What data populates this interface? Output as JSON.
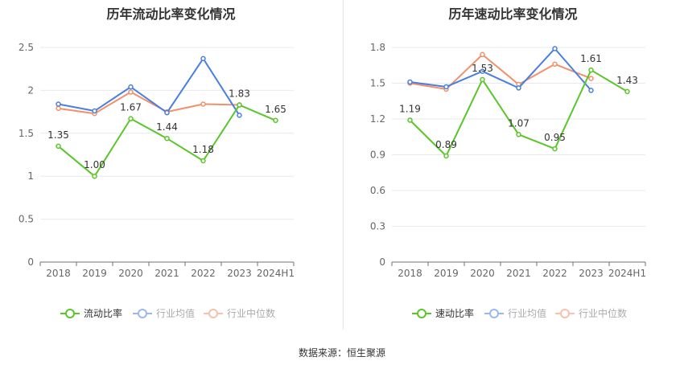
{
  "source": "数据来源：恒生聚源",
  "colors": {
    "company": "#5ac62a",
    "avg": "#4a7fdf",
    "median": "#f2906a",
    "grid": "#e8e8ee",
    "axis": "#666666",
    "label": "#333333"
  },
  "chart_data": [
    {
      "type": "line",
      "title": "历年流动比率变化情况",
      "categories": [
        "2018",
        "2019",
        "2020",
        "2021",
        "2022",
        "2023",
        "2024H1"
      ],
      "ylim": [
        0,
        2.5
      ],
      "yticks": [
        "0",
        "0.5",
        "1",
        "1.5",
        "2",
        "2.5"
      ],
      "grid": true,
      "legend_position": "bottom",
      "series": [
        {
          "name": "流动比率",
          "role": "company",
          "values": [
            1.35,
            1.0,
            1.67,
            1.44,
            1.18,
            1.83,
            1.65
          ],
          "labels": [
            "1.35",
            "1.00",
            "1.67",
            "1.44",
            "1.18",
            "1.83",
            "1.65"
          ]
        },
        {
          "name": "行业均值",
          "role": "avg",
          "values": [
            1.84,
            1.76,
            2.04,
            1.74,
            2.37,
            1.71,
            null
          ]
        },
        {
          "name": "行业中位数",
          "role": "median",
          "values": [
            1.79,
            1.73,
            1.98,
            1.75,
            1.84,
            1.83,
            null
          ]
        }
      ]
    },
    {
      "type": "line",
      "title": "历年速动比率变化情况",
      "categories": [
        "2018",
        "2019",
        "2020",
        "2021",
        "2022",
        "2023",
        "2024H1"
      ],
      "ylim": [
        0,
        1.8
      ],
      "yticks": [
        "0",
        "0.3",
        "0.6",
        "0.9",
        "1.2",
        "1.5",
        "1.8"
      ],
      "grid": true,
      "legend_position": "bottom",
      "series": [
        {
          "name": "速动比率",
          "role": "company",
          "values": [
            1.19,
            0.89,
            1.53,
            1.07,
            0.95,
            1.61,
            1.43
          ],
          "labels": [
            "1.19",
            "0.89",
            "1.53",
            "1.07",
            "0.95",
            "1.61",
            "1.43"
          ]
        },
        {
          "name": "行业均值",
          "role": "avg",
          "values": [
            1.51,
            1.47,
            1.6,
            1.46,
            1.79,
            1.44,
            null
          ]
        },
        {
          "name": "行业中位数",
          "role": "median",
          "values": [
            1.5,
            1.45,
            1.74,
            1.49,
            1.66,
            1.54,
            null
          ]
        }
      ]
    }
  ]
}
